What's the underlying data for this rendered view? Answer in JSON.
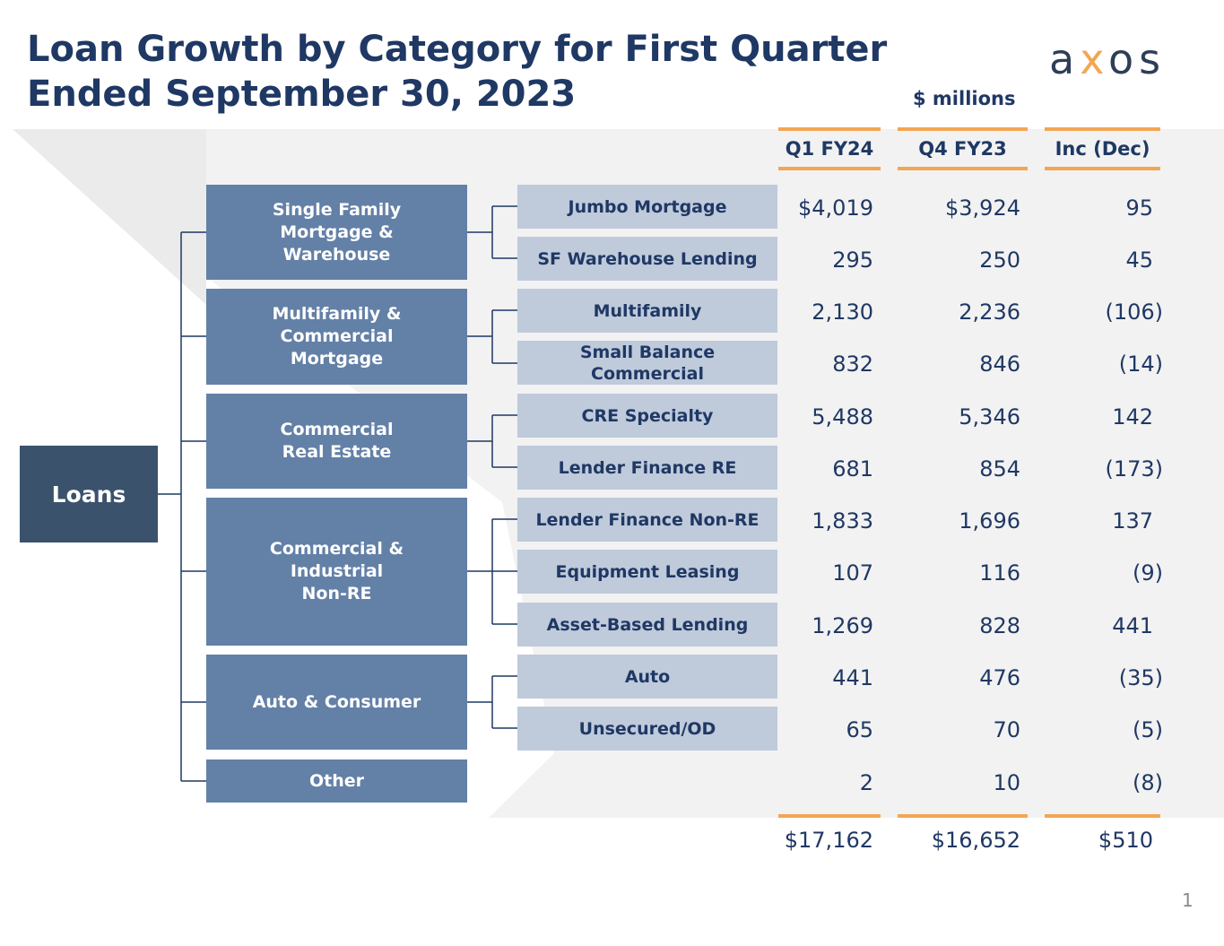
{
  "title": {
    "line1": "Loan Growth by Category for First Quarter",
    "line2": "Ended September 30, 2023"
  },
  "logo": {
    "text": "axos",
    "color": "#2d3e57",
    "accent": "#f2a654"
  },
  "units": "$ millions",
  "columns": [
    "Q1 FY24",
    "Q4 FY23",
    "Inc (Dec)"
  ],
  "root": "Loans",
  "categories": [
    "Single Family\nMortgage &\nWarehouse",
    "Multifamily &\nCommercial\nMortgage",
    "Commercial\nReal Estate",
    "Commercial &\nIndustrial\nNon-RE",
    "Auto & Consumer",
    "Other"
  ],
  "rows": [
    {
      "label": "Jumbo Mortgage",
      "q1": "$4,019",
      "q4": "$3,924",
      "inc": "95"
    },
    {
      "label": "SF Warehouse Lending",
      "q1": "295",
      "q4": "250",
      "inc": "45"
    },
    {
      "label": "Multifamily",
      "q1": "2,130",
      "q4": "2,236",
      "inc": "(106)"
    },
    {
      "label": "Small Balance\nCommercial",
      "q1": "832",
      "q4": "846",
      "inc": "(14)"
    },
    {
      "label": "CRE Specialty",
      "q1": "5,488",
      "q4": "5,346",
      "inc": "142"
    },
    {
      "label": "Lender Finance RE",
      "q1": "681",
      "q4": "854",
      "inc": "(173)"
    },
    {
      "label": "Lender Finance Non-RE",
      "q1": "1,833",
      "q4": "1,696",
      "inc": "137"
    },
    {
      "label": "Equipment Leasing",
      "q1": "107",
      "q4": "116",
      "inc": "(9)"
    },
    {
      "label": "Asset-Based Lending",
      "q1": "1,269",
      "q4": "828",
      "inc": "441"
    },
    {
      "label": "Auto",
      "q1": "441",
      "q4": "476",
      "inc": "(35)"
    },
    {
      "label": "Unsecured/OD",
      "q1": "65",
      "q4": "70",
      "inc": "(5)"
    },
    {
      "label": "",
      "q1": "2",
      "q4": "10",
      "inc": "(8)"
    }
  ],
  "totals": {
    "q1": "$17,162",
    "q4": "$16,652",
    "inc": "$510"
  },
  "page_number": "1"
}
